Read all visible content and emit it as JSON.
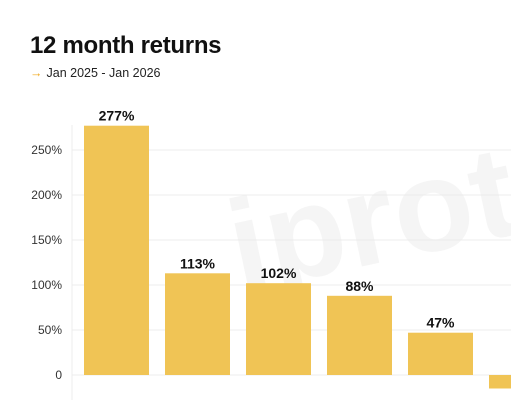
{
  "header": {
    "title": "12 month returns",
    "subtitle_arrow": "→",
    "subtitle_range": "Jan 2025 - Jan 2026"
  },
  "watermark": "iproto",
  "chart_data": {
    "type": "bar",
    "title": "12 month returns",
    "subtitle": "Jan 2025 - Jan 2026",
    "xlabel": "",
    "ylabel": "",
    "categories": [
      "",
      "",
      "",
      "",
      "",
      ""
    ],
    "values": [
      277,
      113,
      102,
      88,
      47,
      -15
    ],
    "data_labels": [
      "277%",
      "113%",
      "102%",
      "88%",
      "47%",
      ""
    ],
    "y_ticks": [
      0,
      50,
      100,
      150,
      200,
      250
    ],
    "y_tick_labels": [
      "0",
      "50%",
      "100%",
      "150%",
      "200%",
      "250%"
    ],
    "ylim": [
      -15,
      300
    ],
    "grid": true,
    "legend": "none",
    "bar_color": "#f0c455",
    "grid_color": "#ececec",
    "accent_color": "#f0a81c"
  }
}
